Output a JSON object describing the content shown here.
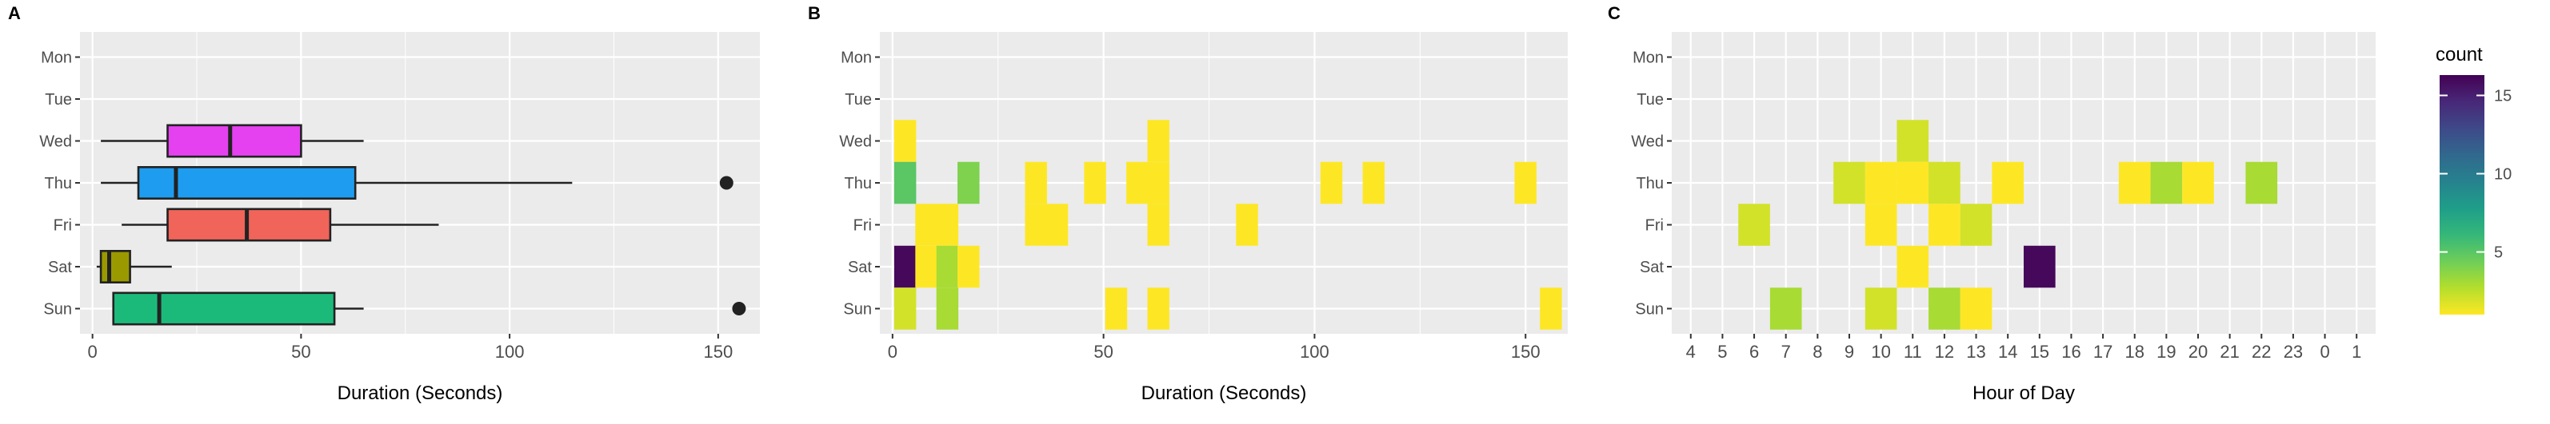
{
  "chart_data": [
    {
      "panel": "A",
      "type": "box",
      "categories": [
        "Mon",
        "Tue",
        "Wed",
        "Thu",
        "Fri",
        "Sat",
        "Sun"
      ],
      "xlabel": "Duration (Seconds)",
      "xlim": [
        -3,
        160
      ],
      "xticks": [
        0,
        50,
        100,
        150
      ],
      "grid": true,
      "boxes": [
        {
          "day": "Wed",
          "min": 2,
          "q1": 18,
          "median": 33,
          "q3": 50,
          "max": 65,
          "outliers": [],
          "color": "#e541f0"
        },
        {
          "day": "Thu",
          "min": 2,
          "q1": 11,
          "median": 20,
          "q3": 63,
          "max": 115,
          "outliers": [
            152
          ],
          "color": "#1e9df0"
        },
        {
          "day": "Fri",
          "min": 7,
          "q1": 18,
          "median": 37,
          "q3": 57,
          "max": 83,
          "outliers": [],
          "color": "#f0645a"
        },
        {
          "day": "Sat",
          "min": 1,
          "q1": 2,
          "median": 4,
          "q3": 9,
          "max": 19,
          "outliers": [],
          "color": "#9a9a00"
        },
        {
          "day": "Sun",
          "min": 5,
          "q1": 5,
          "median": 16,
          "q3": 58,
          "max": 65,
          "outliers": [
            155
          ],
          "color": "#1cba7a"
        }
      ]
    },
    {
      "panel": "B",
      "type": "heatmap",
      "categories": [
        "Mon",
        "Tue",
        "Wed",
        "Thu",
        "Fri",
        "Sat",
        "Sun"
      ],
      "xlabel": "Duration (Seconds)",
      "xlim": [
        -3,
        160
      ],
      "xticks": [
        0,
        50,
        100,
        150
      ],
      "bin_width": 5.2,
      "cells": [
        {
          "day": "Wed",
          "x": 3,
          "count": 1
        },
        {
          "day": "Wed",
          "x": 63,
          "count": 1
        },
        {
          "day": "Thu",
          "x": 3,
          "count": 5
        },
        {
          "day": "Thu",
          "x": 18,
          "count": 4
        },
        {
          "day": "Thu",
          "x": 34,
          "count": 1
        },
        {
          "day": "Thu",
          "x": 48,
          "count": 1
        },
        {
          "day": "Thu",
          "x": 58,
          "count": 1
        },
        {
          "day": "Thu",
          "x": 63,
          "count": 1
        },
        {
          "day": "Thu",
          "x": 104,
          "count": 1
        },
        {
          "day": "Thu",
          "x": 114,
          "count": 1
        },
        {
          "day": "Thu",
          "x": 150,
          "count": 1
        },
        {
          "day": "Fri",
          "x": 8,
          "count": 1
        },
        {
          "day": "Fri",
          "x": 13,
          "count": 1
        },
        {
          "day": "Fri",
          "x": 34,
          "count": 1
        },
        {
          "day": "Fri",
          "x": 39,
          "count": 1
        },
        {
          "day": "Fri",
          "x": 63,
          "count": 1
        },
        {
          "day": "Fri",
          "x": 84,
          "count": 1
        },
        {
          "day": "Sat",
          "x": 3,
          "count": 16
        },
        {
          "day": "Sat",
          "x": 8,
          "count": 1
        },
        {
          "day": "Sat",
          "x": 13,
          "count": 3
        },
        {
          "day": "Sat",
          "x": 18,
          "count": 1
        },
        {
          "day": "Sun",
          "x": 3,
          "count": 2
        },
        {
          "day": "Sun",
          "x": 13,
          "count": 3
        },
        {
          "day": "Sun",
          "x": 53,
          "count": 1
        },
        {
          "day": "Sun",
          "x": 63,
          "count": 1
        },
        {
          "day": "Sun",
          "x": 156,
          "count": 1
        }
      ]
    },
    {
      "panel": "C",
      "type": "heatmap",
      "categories": [
        "Mon",
        "Tue",
        "Wed",
        "Thu",
        "Fri",
        "Sat",
        "Sun"
      ],
      "xlabel": "Hour of Day",
      "x_categories": [
        "4",
        "5",
        "6",
        "7",
        "8",
        "9",
        "10",
        "11",
        "12",
        "13",
        "14",
        "15",
        "16",
        "17",
        "18",
        "19",
        "20",
        "21",
        "22",
        "23",
        "0",
        "1"
      ],
      "cells": [
        {
          "day": "Wed",
          "hour": "11",
          "count": 2
        },
        {
          "day": "Thu",
          "hour": "9",
          "count": 2
        },
        {
          "day": "Thu",
          "hour": "10",
          "count": 1
        },
        {
          "day": "Thu",
          "hour": "11",
          "count": 1
        },
        {
          "day": "Thu",
          "hour": "12",
          "count": 2
        },
        {
          "day": "Thu",
          "hour": "14",
          "count": 1
        },
        {
          "day": "Thu",
          "hour": "18",
          "count": 1
        },
        {
          "day": "Thu",
          "hour": "19",
          "count": 3
        },
        {
          "day": "Thu",
          "hour": "20",
          "count": 1
        },
        {
          "day": "Thu",
          "hour": "22",
          "count": 3
        },
        {
          "day": "Fri",
          "hour": "6",
          "count": 2
        },
        {
          "day": "Fri",
          "hour": "10",
          "count": 1
        },
        {
          "day": "Fri",
          "hour": "12",
          "count": 1
        },
        {
          "day": "Fri",
          "hour": "13",
          "count": 2
        },
        {
          "day": "Sat",
          "hour": "11",
          "count": 1
        },
        {
          "day": "Sat",
          "hour": "15",
          "count": 16
        },
        {
          "day": "Sun",
          "hour": "7",
          "count": 3
        },
        {
          "day": "Sun",
          "hour": "10",
          "count": 2
        },
        {
          "day": "Sun",
          "hour": "12",
          "count": 3
        },
        {
          "day": "Sun",
          "hour": "13",
          "count": 1
        }
      ]
    }
  ],
  "legend": {
    "title": "count",
    "ticks": [
      5,
      10,
      15
    ],
    "range": [
      1,
      16.3
    ],
    "colors": [
      "#fde725",
      "#b4de2c",
      "#6ece58",
      "#35b779",
      "#1f9e89",
      "#26828e",
      "#31688e",
      "#3e4989",
      "#482878",
      "#440154"
    ]
  }
}
